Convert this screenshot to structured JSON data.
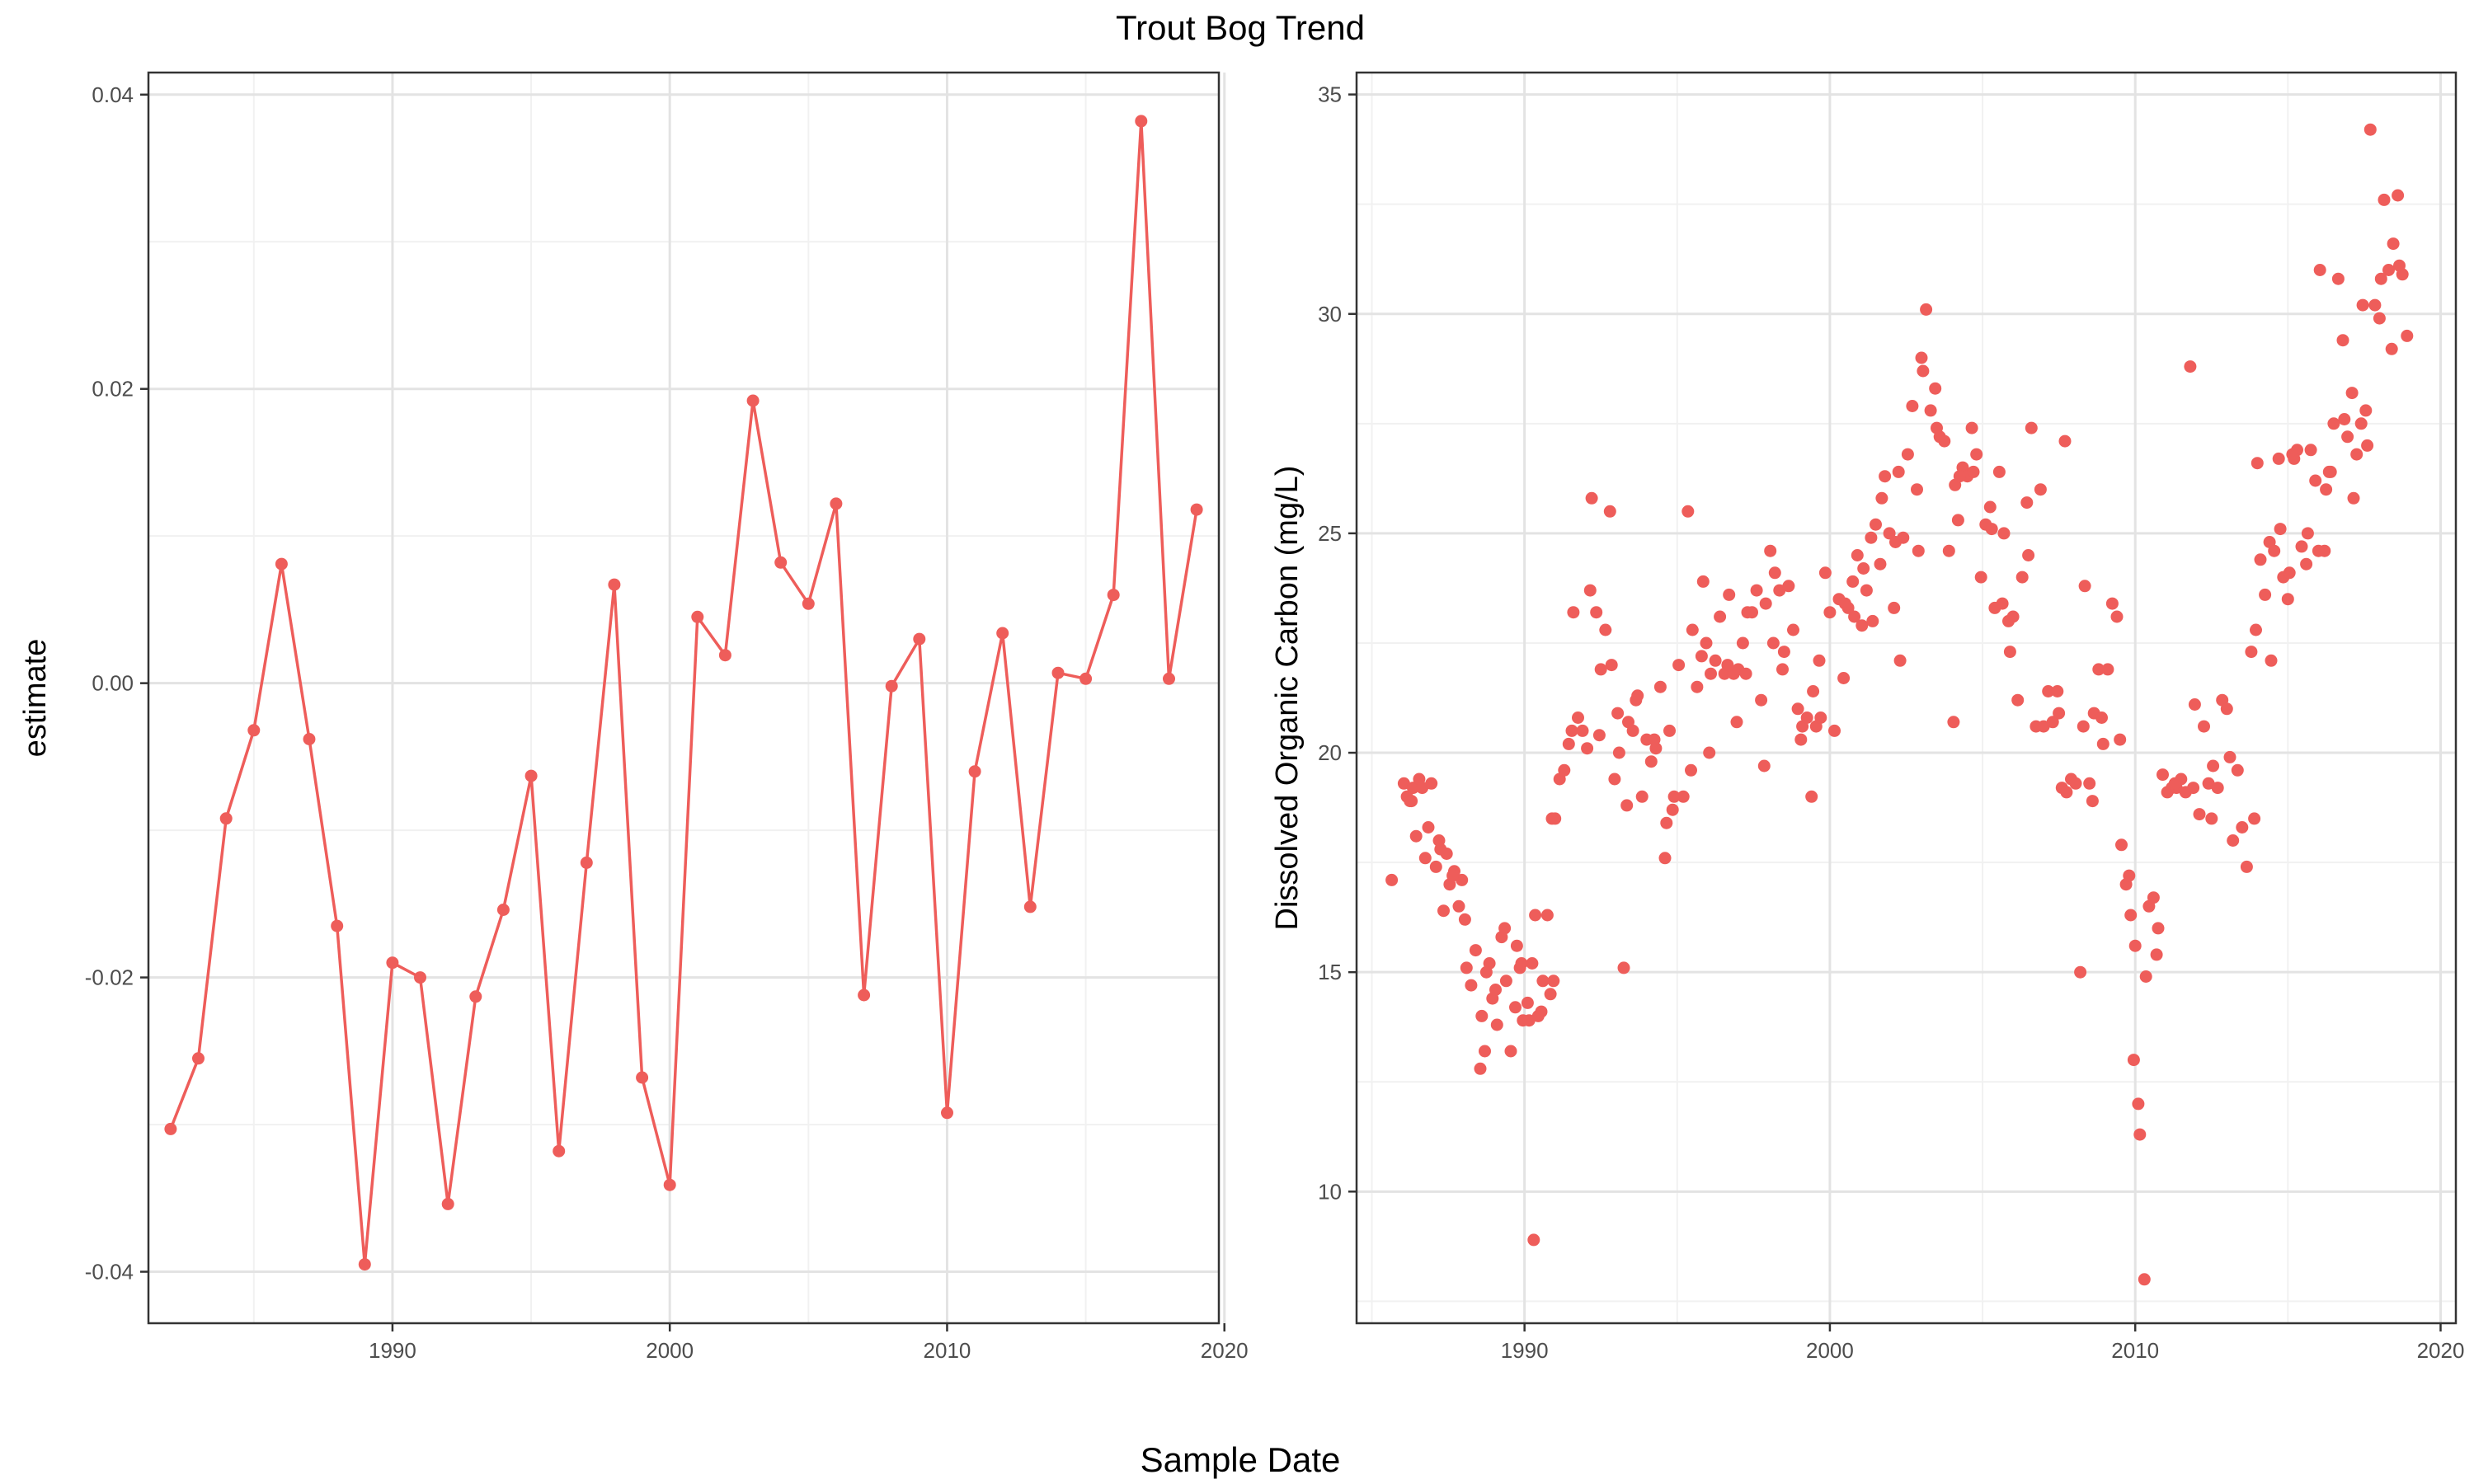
{
  "title": "Trout Bog Trend",
  "shared_xlabel": "Sample Date",
  "colors": {
    "series": "#ee5d5a",
    "grid_major": "#e3e3e3",
    "grid_minor": "#f1f1f1",
    "panel_border": "#333333",
    "tick_text": "#4d4d4d"
  },
  "chart_data": [
    {
      "type": "line",
      "name": "estimate-panel",
      "xlabel": "",
      "ylabel": "estimate",
      "x_ticks": [
        1990,
        2000,
        2010,
        2020
      ],
      "y_ticks": [
        -0.04,
        -0.02,
        0.0,
        0.02,
        0.04
      ],
      "y_tick_labels": [
        "-0.04",
        "-0.02",
        "0.00",
        "0.02",
        "0.04"
      ],
      "xlim": [
        1981.2,
        2019.8
      ],
      "ylim": [
        -0.0435,
        0.0415
      ],
      "grid": true,
      "markers": true,
      "series": [
        {
          "x": [
            1982,
            1983,
            1984,
            1985,
            1986,
            1987,
            1988,
            1989,
            1990,
            1991,
            1992,
            1993,
            1994,
            1995,
            1996,
            1997,
            1998,
            1999,
            2000,
            2001,
            2002,
            2003,
            2004,
            2005,
            2006,
            2007,
            2008,
            2009,
            2010,
            2011,
            2012,
            2013,
            2014,
            2015,
            2016,
            2017,
            2018,
            2019
          ],
          "y": [
            -0.0303,
            -0.0255,
            -0.0092,
            -0.0032,
            0.0081,
            -0.0038,
            -0.0165,
            -0.0395,
            -0.019,
            -0.02,
            -0.0354,
            -0.0213,
            -0.0154,
            -0.0063,
            -0.0318,
            -0.0122,
            0.0067,
            -0.0268,
            -0.0341,
            0.0045,
            0.0019,
            0.0192,
            0.0082,
            0.0054,
            0.0122,
            -0.0212,
            -0.0002,
            0.003,
            -0.0292,
            -0.006,
            0.0034,
            -0.0152,
            0.0007,
            0.0003,
            0.006,
            0.0382,
            0.0003,
            0.0118
          ]
        }
      ]
    },
    {
      "type": "scatter",
      "name": "doc-panel",
      "xlabel": "",
      "ylabel": "Dissolved Organic Carbon (mg/L)",
      "x_ticks": [
        1990,
        2000,
        2010,
        2020
      ],
      "y_ticks": [
        10,
        15,
        20,
        25,
        30,
        35
      ],
      "y_tick_labels": [
        "10",
        "15",
        "20",
        "25",
        "30",
        "35"
      ],
      "xlim": [
        1984.5,
        2020.5
      ],
      "ylim": [
        7.0,
        35.5
      ],
      "grid": true,
      "series": [
        {
          "x": [
            1985.65,
            1986.05,
            1986.15,
            1986.25,
            1986.35,
            1986.45,
            1986.55,
            1986.65,
            1986.75,
            1986.95,
            1987.1,
            1987.2,
            1987.35,
            1987.45,
            1987.55,
            1987.7,
            1987.85,
            1987.95,
            1988.1,
            1988.25,
            1988.4,
            1988.55,
            1988.7,
            1988.85,
            1988.95,
            1989.1,
            1989.25,
            1989.4,
            1989.55,
            1989.7,
            1989.85,
            1989.95,
            1990.1,
            1990.25,
            1990.35,
            1990.45,
            1990.6,
            1990.75,
            1990.85,
            1990.95,
            1986.3,
            1986.85,
            1987.25,
            1987.65,
            1988.05,
            1988.6,
            1989.05,
            1989.35,
            1989.75,
            1990.15,
            1990.55,
            1990.9,
            1988.75,
            1989.9,
            1990.3
          ],
          "y": [
            17.1,
            19.3,
            19.0,
            18.9,
            19.2,
            18.1,
            19.4,
            19.2,
            17.6,
            19.3,
            17.4,
            18.0,
            16.4,
            17.7,
            17.0,
            17.3,
            16.5,
            17.1,
            15.1,
            14.7,
            15.5,
            12.8,
            13.2,
            15.2,
            14.4,
            13.8,
            15.8,
            14.8,
            13.2,
            14.2,
            15.1,
            13.9,
            14.3,
            15.2,
            16.3,
            14.0,
            14.8,
            16.3,
            14.5,
            14.8,
            18.9,
            18.3,
            17.8,
            17.2,
            16.2,
            14.0,
            14.6,
            16.0,
            15.6,
            13.9,
            14.1,
            18.5,
            15.0,
            15.2,
            8.9
          ]
        },
        {
          "x": [
            1991.0,
            1991.15,
            1991.3,
            1991.45,
            1991.6,
            1991.75,
            1991.9,
            1992.05,
            1992.2,
            1992.35,
            1992.5,
            1992.65,
            1992.8,
            1992.95,
            1993.1,
            1993.25,
            1993.4,
            1993.55,
            1993.7,
            1993.85,
            1994.0,
            1994.15,
            1994.3,
            1994.45,
            1994.6,
            1994.75,
            1994.9,
            1995.05,
            1995.2,
            1995.35,
            1995.5,
            1995.65,
            1995.8,
            1995.95,
            1996.1,
            1996.25,
            1996.4,
            1996.55,
            1996.7,
            1996.85,
            1997.0,
            1997.15,
            1997.3,
            1997.45,
            1997.6,
            1997.75,
            1997.9,
            1998.05,
            1998.2,
            1998.35,
            1998.5,
            1998.65,
            1998.8,
            1998.95,
            1999.1,
            1999.25,
            1999.4,
            1999.55,
            1999.7,
            1999.85,
            1991.55,
            1992.15,
            1992.45,
            1993.05,
            1993.65,
            1994.25,
            1994.85,
            1995.45,
            1996.05,
            1996.65,
            1997.25,
            1997.85,
            1998.45,
            1999.05,
            1999.65,
            1992.85,
            1993.35,
            1994.65,
            1995.85,
            1996.95,
            1998.15,
            1999.45
          ],
          "y": [
            18.5,
            19.4,
            19.6,
            20.2,
            23.2,
            20.8,
            20.5,
            20.1,
            25.8,
            23.2,
            21.9,
            22.8,
            25.5,
            19.4,
            20.0,
            15.1,
            20.7,
            20.5,
            21.3,
            19.0,
            20.3,
            19.8,
            20.1,
            21.5,
            17.6,
            20.5,
            19.0,
            22.0,
            19.0,
            25.5,
            22.8,
            21.5,
            22.2,
            22.5,
            21.8,
            22.1,
            23.1,
            21.8,
            23.6,
            21.8,
            21.9,
            22.5,
            23.2,
            23.2,
            23.7,
            21.2,
            23.4,
            24.6,
            24.1,
            23.7,
            22.3,
            23.8,
            22.8,
            21.0,
            20.6,
            20.8,
            19.0,
            20.6,
            20.8,
            24.1,
            20.5,
            23.7,
            20.4,
            20.9,
            21.2,
            20.3,
            18.7,
            19.6,
            20.0,
            22.0,
            21.8,
            19.7,
            21.9,
            20.3,
            22.1,
            22.0,
            18.8,
            18.4,
            23.9,
            20.7,
            22.5,
            21.4
          ]
        },
        {
          "x": [
            2000.0,
            2000.15,
            2000.3,
            2000.45,
            2000.6,
            2000.75,
            2000.9,
            2001.05,
            2001.2,
            2001.35,
            2001.5,
            2001.65,
            2001.8,
            2001.95,
            2002.1,
            2002.25,
            2002.4,
            2002.55,
            2002.7,
            2002.85,
            2003.0,
            2003.15,
            2003.3,
            2003.45,
            2003.6,
            2003.75,
            2003.9,
            2004.05,
            2004.2,
            2004.35,
            2004.5,
            2004.65,
            2004.8,
            2004.95,
            2005.1,
            2005.25,
            2005.4,
            2005.55,
            2005.7,
            2005.85,
            2006.0,
            2006.15,
            2006.3,
            2006.45,
            2006.6,
            2006.75,
            2006.9,
            2000.5,
            2001.1,
            2001.7,
            2002.3,
            2002.9,
            2003.5,
            2004.1,
            2004.7,
            2005.3,
            2005.9,
            2006.5,
            2003.05,
            2004.25,
            2005.65,
            2002.15,
            2001.4,
            2000.8
          ],
          "y": [
            23.2,
            20.5,
            23.5,
            21.7,
            23.3,
            23.9,
            24.5,
            22.9,
            23.7,
            24.9,
            25.2,
            24.3,
            26.3,
            25.0,
            23.3,
            26.4,
            24.9,
            26.8,
            27.9,
            26.0,
            29.0,
            30.1,
            27.8,
            28.3,
            27.2,
            27.1,
            24.6,
            20.7,
            25.3,
            26.5,
            26.3,
            27.4,
            26.8,
            24.0,
            25.2,
            25.6,
            23.3,
            26.4,
            25.0,
            23.0,
            23.1,
            21.2,
            24.0,
            25.7,
            27.4,
            20.6,
            26.0,
            23.4,
            24.2,
            25.8,
            22.1,
            24.6,
            27.4,
            26.1,
            26.4,
            25.1,
            22.3,
            24.5,
            28.7,
            26.3,
            23.4,
            24.8,
            23.0,
            23.1
          ]
        },
        {
          "x": [
            2007.0,
            2007.15,
            2007.3,
            2007.45,
            2007.6,
            2007.75,
            2007.9,
            2008.05,
            2008.2,
            2008.35,
            2008.5,
            2008.65,
            2008.8,
            2008.95,
            2009.1,
            2009.25,
            2009.4,
            2009.55,
            2009.7,
            2009.85,
            2010.0,
            2010.15,
            2010.3,
            2010.45,
            2010.6,
            2010.75,
            2010.9,
            2011.05,
            2011.2,
            2011.35,
            2011.5,
            2011.65,
            2011.8,
            2011.95,
            2012.1,
            2012.25,
            2012.4,
            2012.55,
            2012.7,
            2012.85,
            2013.0,
            2007.7,
            2008.3,
            2008.9,
            2009.5,
            2010.1,
            2010.7,
            2011.3,
            2011.9,
            2012.5,
            2013.1,
            2009.8,
            2010.35,
            2009.95,
            2008.6,
            2007.5
          ],
          "y": [
            20.6,
            21.4,
            20.7,
            21.4,
            19.2,
            19.1,
            19.4,
            19.3,
            15.0,
            23.8,
            19.3,
            20.9,
            21.9,
            20.2,
            21.9,
            23.4,
            23.1,
            17.9,
            17.0,
            16.3,
            15.6,
            11.3,
            8.0,
            16.5,
            16.7,
            16.0,
            19.5,
            19.1,
            19.2,
            19.2,
            19.4,
            19.1,
            28.8,
            21.1,
            18.6,
            20.6,
            19.3,
            19.7,
            19.2,
            21.2,
            21.0,
            27.1,
            20.6,
            20.8,
            20.3,
            12.0,
            15.4,
            19.3,
            19.2,
            18.5,
            19.9,
            17.2,
            14.9,
            13.0,
            18.9,
            20.9
          ]
        },
        {
          "x": [
            2013.2,
            2013.35,
            2013.5,
            2013.65,
            2013.8,
            2013.95,
            2014.1,
            2014.25,
            2014.4,
            2014.55,
            2014.7,
            2014.85,
            2015.0,
            2015.15,
            2015.3,
            2015.45,
            2015.6,
            2015.75,
            2015.9,
            2016.05,
            2016.2,
            2016.35,
            2016.5,
            2016.65,
            2016.8,
            2016.95,
            2017.1,
            2017.25,
            2017.4,
            2017.55,
            2017.7,
            2017.85,
            2018.0,
            2018.15,
            2018.3,
            2018.45,
            2018.6,
            2018.75,
            2018.9,
            2013.9,
            2014.45,
            2015.05,
            2015.65,
            2016.25,
            2016.85,
            2017.45,
            2018.05,
            2018.65,
            2014.0,
            2015.2,
            2016.4,
            2017.6,
            2018.4,
            2014.75,
            2016.0,
            2017.15
          ],
          "y": [
            18.0,
            19.6,
            18.3,
            17.4,
            22.3,
            22.8,
            24.4,
            23.6,
            24.8,
            24.6,
            26.7,
            24.0,
            23.5,
            26.8,
            26.9,
            24.7,
            24.3,
            26.9,
            26.2,
            31.0,
            24.6,
            26.4,
            27.5,
            30.8,
            29.4,
            27.2,
            28.2,
            26.8,
            27.5,
            27.8,
            34.2,
            30.2,
            29.9,
            32.6,
            31.0,
            31.6,
            32.7,
            30.9,
            29.5,
            18.5,
            22.1,
            24.1,
            25.0,
            26.0,
            27.6,
            30.2,
            30.8,
            31.1,
            26.6,
            26.7,
            26.4,
            27.0,
            29.2,
            25.1,
            24.6,
            25.8
          ]
        }
      ]
    }
  ]
}
